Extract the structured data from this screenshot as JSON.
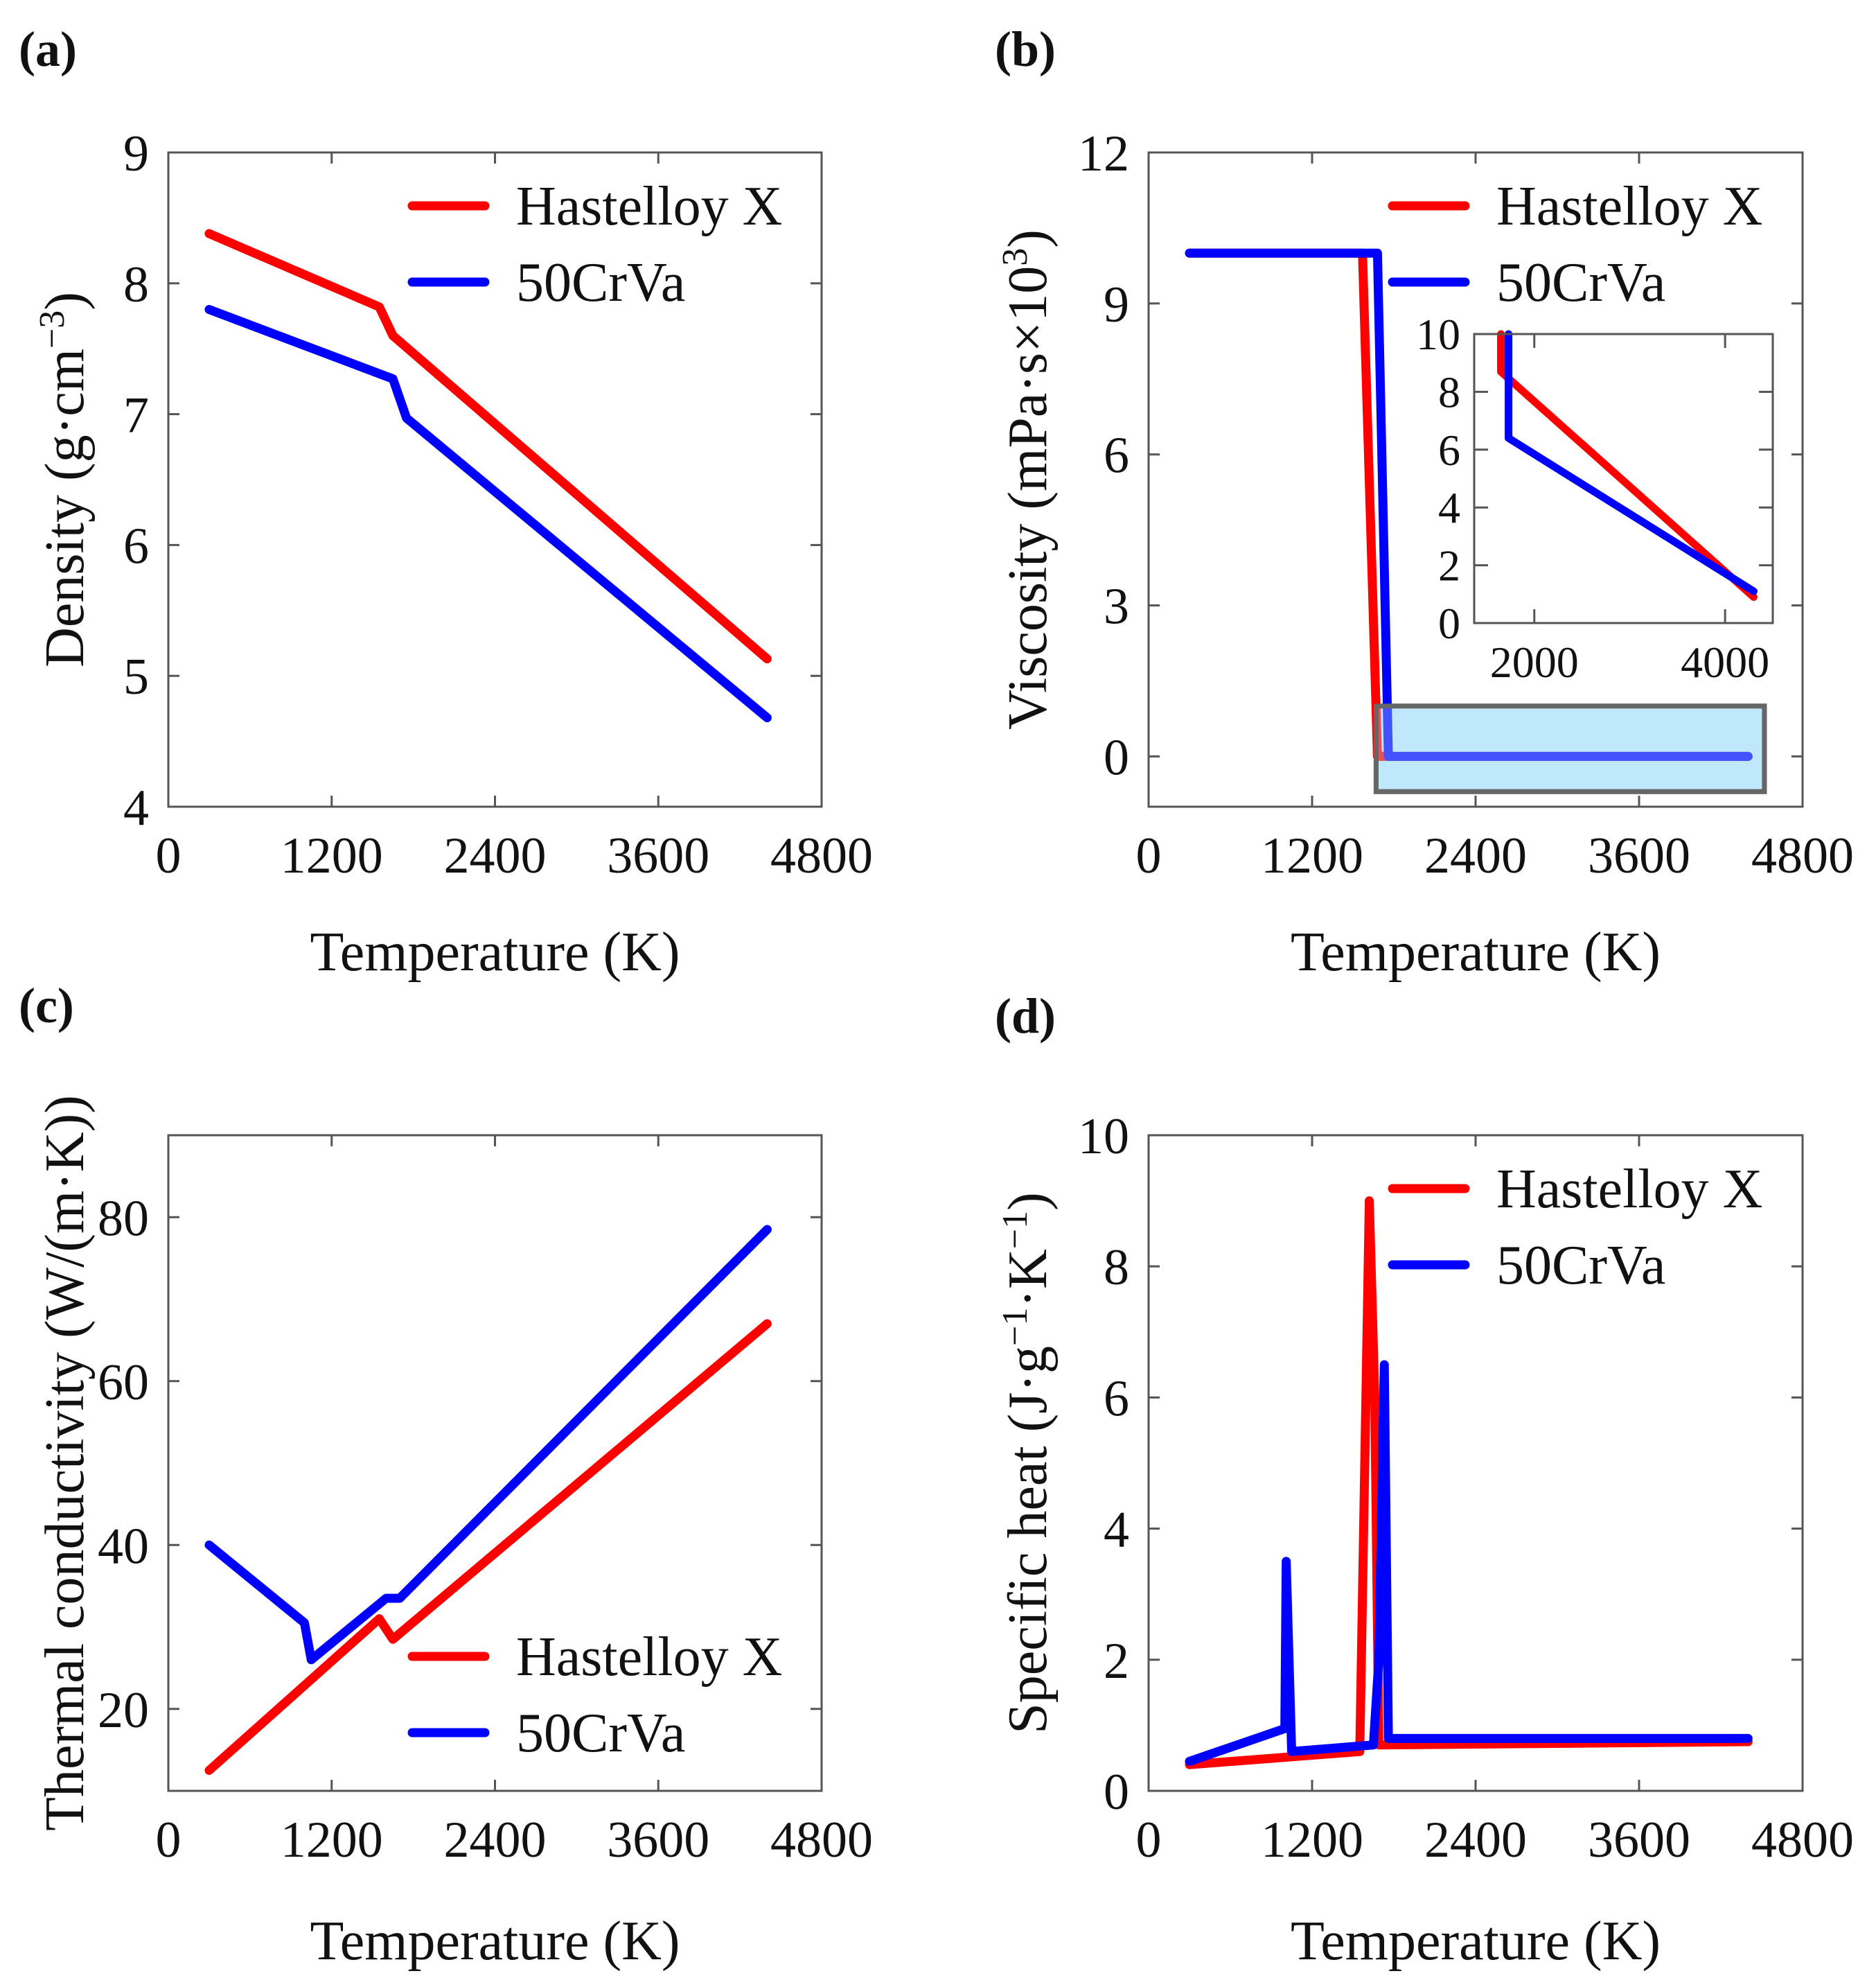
{
  "colors": {
    "hastelloy": "#ff0000",
    "crva": "#0000ff",
    "highlight_fill": "#bfe9fb",
    "highlight_stroke": "#666666"
  },
  "chart_data": [
    {
      "panel": "(a)",
      "type": "line",
      "xlabel": "Temperature (K)",
      "ylabel_parts": [
        "Density (g·cm",
        "−3",
        ")"
      ],
      "xlim": [
        0,
        4800
      ],
      "ylim": [
        4,
        9
      ],
      "xticks": [
        0,
        1200,
        2400,
        3600,
        4800
      ],
      "yticks": [
        4,
        5,
        6,
        7,
        8,
        9
      ],
      "legend": {
        "placement": "top-right"
      },
      "series": [
        {
          "name": "Hastelloy X",
          "color_key": "hastelloy",
          "x": [
            300,
            1550,
            1650,
            4400
          ],
          "y": [
            8.38,
            7.82,
            7.6,
            5.13
          ]
        },
        {
          "name": "50CrVa",
          "color_key": "crva",
          "x": [
            300,
            1650,
            1750,
            4400
          ],
          "y": [
            7.8,
            7.27,
            6.97,
            4.68
          ]
        }
      ]
    },
    {
      "panel": "(b)",
      "type": "line",
      "xlabel": "Temperature (K)",
      "ylabel_parts": [
        "Viscosity (mPa·s×10",
        "3",
        ")"
      ],
      "xlim": [
        0,
        4800
      ],
      "ylim": [
        -1,
        12
      ],
      "xticks": [
        0,
        1200,
        2400,
        3600,
        4800
      ],
      "yticks": [
        0,
        3,
        6,
        9,
        12
      ],
      "legend": {
        "placement": "top-right"
      },
      "highlight": {
        "x": [
          1670,
          4520
        ],
        "y": [
          -0.7,
          1.0
        ]
      },
      "series": [
        {
          "name": "Hastelloy X",
          "color_key": "hastelloy",
          "x": [
            300,
            1570,
            1680,
            4400
          ],
          "y": [
            10,
            10,
            0,
            0
          ]
        },
        {
          "name": "50CrVa",
          "color_key": "crva",
          "x": [
            300,
            1680,
            1760,
            4400
          ],
          "y": [
            10,
            10,
            0,
            0
          ]
        }
      ],
      "inset": {
        "xlim": [
          1370,
          4500
        ],
        "ylim": [
          0,
          10
        ],
        "xticks": [
          2000,
          4000
        ],
        "yticks": [
          0,
          2,
          4,
          6,
          8,
          10
        ],
        "series": [
          {
            "name": "Hastelloy X",
            "color_key": "hastelloy",
            "x": [
              1650,
              1650,
              4300
            ],
            "y": [
              10,
              8.7,
              0.9
            ]
          },
          {
            "name": "50CrVa",
            "color_key": "crva",
            "x": [
              1730,
              1730,
              4300
            ],
            "y": [
              10,
              6.4,
              1.1
            ]
          }
        ]
      }
    },
    {
      "panel": "(c)",
      "type": "line",
      "xlabel": "Temperature (K)",
      "ylabel_parts": [
        "Thermal conductivity (W/(m·K))",
        "",
        ""
      ],
      "xlim": [
        0,
        4800
      ],
      "ylim": [
        10,
        90
      ],
      "xticks": [
        0,
        1200,
        2400,
        3600,
        4800
      ],
      "yticks": [
        20,
        40,
        60,
        80
      ],
      "legend": {
        "placement": "bottom-right"
      },
      "series": [
        {
          "name": "Hastelloy X",
          "color_key": "hastelloy",
          "x": [
            300,
            1550,
            1650,
            4400
          ],
          "y": [
            12.5,
            31,
            28.5,
            67
          ]
        },
        {
          "name": "50CrVa",
          "color_key": "crva",
          "x": [
            300,
            1000,
            1050,
            1600,
            1700,
            4400
          ],
          "y": [
            40,
            30.5,
            26,
            33.5,
            33.5,
            78.5
          ]
        }
      ]
    },
    {
      "panel": "(d)",
      "type": "line",
      "xlabel": "Temperature (K)",
      "ylabel_parts": [
        "Specific heat (J·g",
        "−1",
        "·K",
        "−1",
        ")"
      ],
      "xlim": [
        0,
        4800
      ],
      "ylim": [
        0,
        10
      ],
      "xticks": [
        0,
        1200,
        2400,
        3600,
        4800
      ],
      "yticks": [
        0,
        2,
        4,
        6,
        8,
        10
      ],
      "legend": {
        "placement": "top-right"
      },
      "series": [
        {
          "name": "Hastelloy X",
          "color_key": "hastelloy",
          "x": [
            300,
            1550,
            1570,
            1620,
            1660,
            1690,
            4400
          ],
          "y": [
            0.4,
            0.6,
            3,
            9,
            6,
            0.7,
            0.75
          ]
        },
        {
          "name": "50CrVa",
          "color_key": "crva",
          "x": [
            300,
            1000,
            1010,
            1050,
            1650,
            1690,
            1730,
            1760,
            4400
          ],
          "y": [
            0.45,
            0.95,
            3.5,
            0.6,
            0.7,
            2,
            6.5,
            0.8,
            0.8
          ]
        }
      ]
    }
  ]
}
